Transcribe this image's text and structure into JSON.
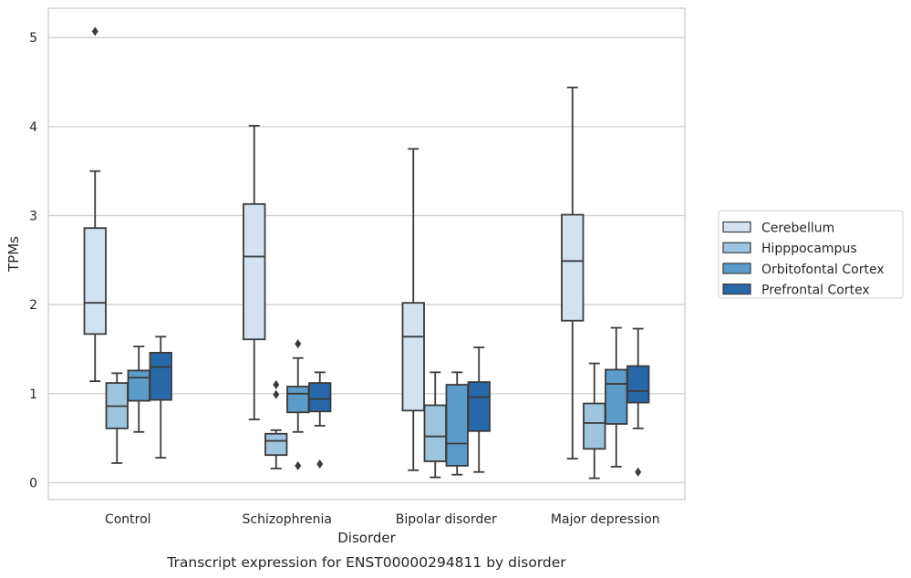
{
  "chart_data": {
    "type": "box",
    "title": "",
    "caption": "Transcript expression for ENST00000294811 by disorder",
    "xlabel": "Disorder",
    "ylabel": "TPMs",
    "ylim": [
      -0.19,
      5.33
    ],
    "yticks": [
      0,
      1,
      2,
      3,
      4,
      5
    ],
    "grid": true,
    "legend_position": "right",
    "categories": [
      "Control",
      "Schizophrenia",
      "Bipolar disorder",
      "Major depression"
    ],
    "series": [
      {
        "name": "Cerebellum",
        "color": "#d2e2f1",
        "boxes": [
          {
            "whisker_low": 1.14,
            "q1": 1.67,
            "median": 2.02,
            "q3": 2.86,
            "whisker_high": 3.5,
            "outliers": [
              5.07
            ]
          },
          {
            "whisker_low": 0.71,
            "q1": 1.61,
            "median": 2.54,
            "q3": 3.13,
            "whisker_high": 4.01,
            "outliers": []
          },
          {
            "whisker_low": 0.14,
            "q1": 0.81,
            "median": 1.64,
            "q3": 2.02,
            "whisker_high": 3.75,
            "outliers": []
          },
          {
            "whisker_low": 0.27,
            "q1": 1.82,
            "median": 2.49,
            "q3": 3.01,
            "whisker_high": 4.44,
            "outliers": []
          }
        ]
      },
      {
        "name": "Hipppocampus",
        "color": "#9dc5df",
        "boxes": [
          {
            "whisker_low": 0.22,
            "q1": 0.61,
            "median": 0.86,
            "q3": 1.12,
            "whisker_high": 1.23,
            "outliers": []
          },
          {
            "whisker_low": 0.16,
            "q1": 0.31,
            "median": 0.47,
            "q3": 0.55,
            "whisker_high": 0.59,
            "outliers": [
              1.1,
              0.99
            ]
          },
          {
            "whisker_low": 0.06,
            "q1": 0.24,
            "median": 0.52,
            "q3": 0.87,
            "whisker_high": 1.24,
            "outliers": []
          },
          {
            "whisker_low": 0.05,
            "q1": 0.38,
            "median": 0.67,
            "q3": 0.89,
            "whisker_high": 1.34,
            "outliers": []
          }
        ]
      },
      {
        "name": "Orbitofontal Cortex",
        "color": "#5b9ccb",
        "boxes": [
          {
            "whisker_low": 0.57,
            "q1": 0.92,
            "median": 1.18,
            "q3": 1.26,
            "whisker_high": 1.53,
            "outliers": []
          },
          {
            "whisker_low": 0.57,
            "q1": 0.79,
            "median": 1.0,
            "q3": 1.08,
            "whisker_high": 1.4,
            "outliers": [
              1.56,
              0.19
            ]
          },
          {
            "whisker_low": 0.09,
            "q1": 0.19,
            "median": 0.44,
            "q3": 1.1,
            "whisker_high": 1.24,
            "outliers": []
          },
          {
            "whisker_low": 0.18,
            "q1": 0.66,
            "median": 1.11,
            "q3": 1.27,
            "whisker_high": 1.74,
            "outliers": []
          }
        ]
      },
      {
        "name": "Prefrontal Cortex",
        "color": "#2867a8",
        "boxes": [
          {
            "whisker_low": 0.28,
            "q1": 0.93,
            "median": 1.3,
            "q3": 1.46,
            "whisker_high": 1.64,
            "outliers": []
          },
          {
            "whisker_low": 0.64,
            "q1": 0.8,
            "median": 0.94,
            "q3": 1.12,
            "whisker_high": 1.24,
            "outliers": [
              0.21
            ]
          },
          {
            "whisker_low": 0.12,
            "q1": 0.58,
            "median": 0.96,
            "q3": 1.13,
            "whisker_high": 1.52,
            "outliers": []
          },
          {
            "whisker_low": 0.61,
            "q1": 0.9,
            "median": 1.03,
            "q3": 1.31,
            "whisker_high": 1.73,
            "outliers": [
              0.12
            ]
          }
        ]
      }
    ]
  }
}
